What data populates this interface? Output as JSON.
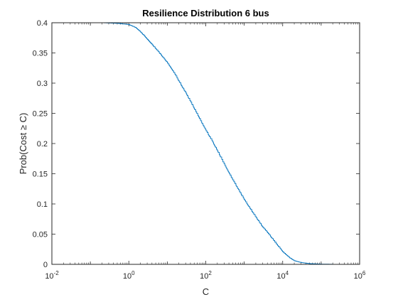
{
  "chart_data": {
    "type": "line",
    "title": "Resilience Distribution 6 bus",
    "xlabel": "C",
    "ylabel": "Prob(Cost ≥ C)",
    "x_scale": "log",
    "xlim": [
      0.01,
      1000000
    ],
    "ylim": [
      0,
      0.4
    ],
    "x_tick_labels": [
      {
        "base": "10",
        "exp": "-2"
      },
      {
        "base": "10",
        "exp": "0"
      },
      {
        "base": "10",
        "exp": "2"
      },
      {
        "base": "10",
        "exp": "4"
      },
      {
        "base": "10",
        "exp": "6"
      }
    ],
    "x_tick_values": [
      0.01,
      1,
      100,
      10000,
      1000000
    ],
    "y_tick_labels": [
      "0",
      "0.05",
      "0.1",
      "0.15",
      "0.2",
      "0.25",
      "0.3",
      "0.35",
      "0.4"
    ],
    "y_tick_values": [
      0,
      0.05,
      0.1,
      0.15,
      0.2,
      0.25,
      0.3,
      0.35,
      0.4
    ],
    "grid": false,
    "box": true,
    "line_color": "#0072bd",
    "series": [
      {
        "x": [
          0.2,
          0.5,
          1,
          1.5,
          2,
          3,
          5,
          7,
          10,
          15,
          20,
          30,
          50,
          70,
          100,
          150,
          200,
          300,
          500,
          700,
          1000,
          1500,
          2000,
          3000,
          4000,
          5000,
          7000,
          10000,
          15000,
          20000,
          30000,
          50000,
          100000,
          200000
        ],
        "y": [
          0.4,
          0.399,
          0.397,
          0.392,
          0.385,
          0.373,
          0.357,
          0.346,
          0.334,
          0.317,
          0.303,
          0.284,
          0.258,
          0.24,
          0.222,
          0.203,
          0.188,
          0.166,
          0.14,
          0.124,
          0.107,
          0.09,
          0.078,
          0.062,
          0.053,
          0.045,
          0.033,
          0.021,
          0.011,
          0.006,
          0.003,
          0.0012,
          0.0004,
          0.0002
        ]
      }
    ]
  }
}
